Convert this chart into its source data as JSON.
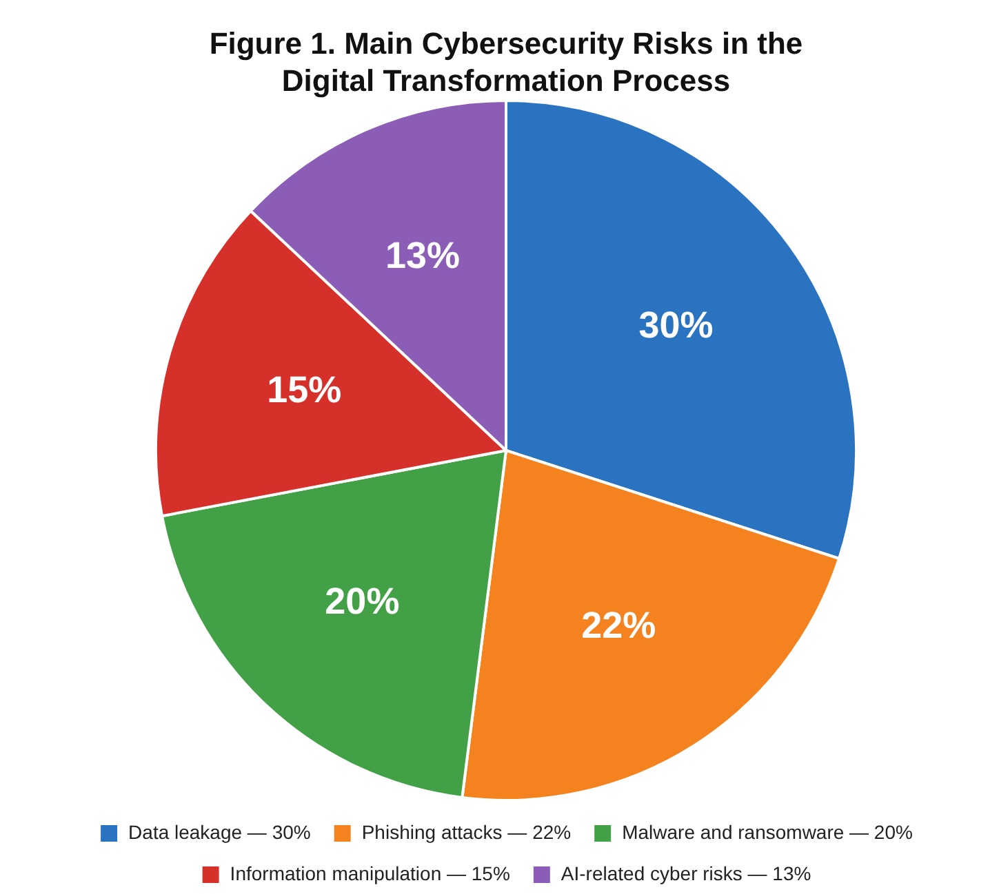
{
  "chart_data": {
    "type": "pie",
    "title": "Figure 1. Main Cybersecurity Risks in the Digital Transformation Process",
    "categories": [
      "Data leakage — 30%",
      "Phishing attacks — 22%",
      "Malware and ransomware — 20%",
      "Information manipulation — 15%",
      "AI-related cyber risks — 13%"
    ],
    "values": [
      30,
      22,
      20,
      15,
      13
    ],
    "value_labels": [
      "30%",
      "22%",
      "20%",
      "15%",
      "13%"
    ],
    "colors": [
      "#2a73c0",
      "#f3821f",
      "#42a147",
      "#d6302b",
      "#8b5db6"
    ],
    "legend": "bottom"
  }
}
